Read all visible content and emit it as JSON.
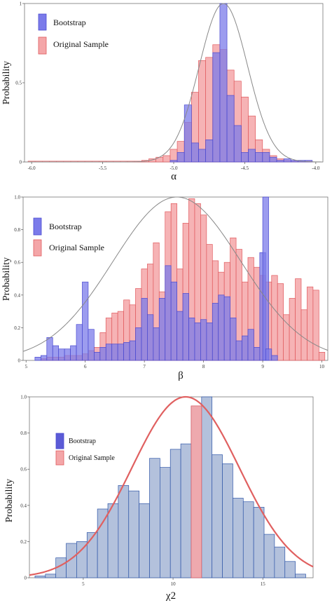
{
  "chart_data": [
    {
      "type": "bar",
      "xlabel": "α",
      "ylabel": "Probability",
      "xlim": [
        -6.05,
        -3.95
      ],
      "ylim": [
        0,
        1.0
      ],
      "xticks": [
        -6.0,
        -5.5,
        -5.0,
        -4.5,
        -4.0
      ],
      "xtick_labels": [
        "-6.0",
        "-5.5",
        "-5.0",
        "-4.5",
        "-4.0"
      ],
      "yticks": [
        0,
        0.5,
        1
      ],
      "ytick_labels": [
        "0",
        "0.5",
        "1"
      ],
      "legend_position": "top-left",
      "grid": false,
      "bin_width": 0.05,
      "series": [
        {
          "name": "Original Sample",
          "color": "#f4a6a8",
          "edge": "#e05a5e",
          "bins": [
            {
              "x": -6.0,
              "y": 0.005
            },
            {
              "x": -5.95,
              "y": 0.005
            },
            {
              "x": -5.9,
              "y": 0.005
            },
            {
              "x": -5.85,
              "y": 0.005
            },
            {
              "x": -5.8,
              "y": 0.005
            },
            {
              "x": -5.75,
              "y": 0.005
            },
            {
              "x": -5.7,
              "y": 0.005
            },
            {
              "x": -5.65,
              "y": 0.005
            },
            {
              "x": -5.6,
              "y": 0.005
            },
            {
              "x": -5.55,
              "y": 0.005
            },
            {
              "x": -5.5,
              "y": 0.005
            },
            {
              "x": -5.45,
              "y": 0.005
            },
            {
              "x": -5.4,
              "y": 0.005
            },
            {
              "x": -5.35,
              "y": 0.005
            },
            {
              "x": -5.3,
              "y": 0.005
            },
            {
              "x": -5.25,
              "y": 0.005
            },
            {
              "x": -5.2,
              "y": 0.01
            },
            {
              "x": -5.15,
              "y": 0.02
            },
            {
              "x": -5.1,
              "y": 0.03
            },
            {
              "x": -5.05,
              "y": 0.04
            },
            {
              "x": -5.0,
              "y": 0.08
            },
            {
              "x": -4.95,
              "y": 0.13
            },
            {
              "x": -4.9,
              "y": 0.25
            },
            {
              "x": -4.85,
              "y": 0.44
            },
            {
              "x": -4.8,
              "y": 0.64
            },
            {
              "x": -4.75,
              "y": 0.66
            },
            {
              "x": -4.7,
              "y": 0.74
            },
            {
              "x": -4.65,
              "y": 0.71
            },
            {
              "x": -4.6,
              "y": 0.58
            },
            {
              "x": -4.55,
              "y": 0.51
            },
            {
              "x": -4.5,
              "y": 0.41
            },
            {
              "x": -4.45,
              "y": 0.29
            },
            {
              "x": -4.4,
              "y": 0.14
            },
            {
              "x": -4.35,
              "y": 0.08
            },
            {
              "x": -4.3,
              "y": 0.04
            },
            {
              "x": -4.25,
              "y": 0.02
            },
            {
              "x": -4.2,
              "y": 0.01
            },
            {
              "x": -4.15,
              "y": 0.005
            },
            {
              "x": -4.1,
              "y": 0.005
            },
            {
              "x": -4.05,
              "y": 0.005
            }
          ]
        },
        {
          "name": "Bootstrap",
          "color": "#7b7bea",
          "edge": "#4a4ad0",
          "bins": [
            {
              "x": -5.0,
              "y": 0.01
            },
            {
              "x": -4.95,
              "y": 0.06
            },
            {
              "x": -4.9,
              "y": 0.36
            },
            {
              "x": -4.85,
              "y": 0.12
            },
            {
              "x": -4.8,
              "y": 0.08
            },
            {
              "x": -4.75,
              "y": 0.14
            },
            {
              "x": -4.7,
              "y": 0.69
            },
            {
              "x": -4.65,
              "y": 1.0
            },
            {
              "x": -4.6,
              "y": 0.42
            },
            {
              "x": -4.55,
              "y": 0.23
            },
            {
              "x": -4.5,
              "y": 0.06
            },
            {
              "x": -4.45,
              "y": 0.08
            },
            {
              "x": -4.4,
              "y": 0.06
            },
            {
              "x": -4.35,
              "y": 0.06
            },
            {
              "x": -4.3,
              "y": 0.03
            },
            {
              "x": -4.25,
              "y": 0.01
            },
            {
              "x": -4.2,
              "y": 0.02
            },
            {
              "x": -4.15,
              "y": 0.01
            },
            {
              "x": -4.1,
              "y": 0.01
            },
            {
              "x": -4.05,
              "y": 0.01
            }
          ]
        }
      ],
      "fit_curve": {
        "type": "normal",
        "mean": -4.65,
        "sd": 0.17,
        "peak": 1.0,
        "color": "#888888"
      }
    },
    {
      "type": "bar",
      "xlabel": "β",
      "ylabel": "Probability",
      "xlim": [
        4.95,
        10.1
      ],
      "ylim": [
        0,
        1.0
      ],
      "xticks": [
        5,
        6,
        7,
        8,
        9,
        10
      ],
      "xtick_labels": [
        "5",
        "6",
        "7",
        "8",
        "9",
        "10"
      ],
      "yticks": [
        0,
        0.2,
        0.4,
        0.6,
        0.8,
        1.0
      ],
      "ytick_labels": [
        "0",
        "0.2",
        "0.4",
        "0.6",
        "0.8",
        "1.0"
      ],
      "legend_position": "top-left",
      "grid": false,
      "bin_width": 0.1,
      "series": [
        {
          "name": "Original Sample",
          "color": "#f4a6a8",
          "edge": "#e05a5e",
          "bins": [
            {
              "x": 5.3,
              "y": 0.01
            },
            {
              "x": 5.4,
              "y": 0.02
            },
            {
              "x": 5.5,
              "y": 0.02
            },
            {
              "x": 5.6,
              "y": 0.02
            },
            {
              "x": 5.7,
              "y": 0.03
            },
            {
              "x": 5.8,
              "y": 0.03
            },
            {
              "x": 5.9,
              "y": 0.03
            },
            {
              "x": 6.0,
              "y": 0.04
            },
            {
              "x": 6.1,
              "y": 0.06
            },
            {
              "x": 6.2,
              "y": 0.08
            },
            {
              "x": 6.3,
              "y": 0.17
            },
            {
              "x": 6.4,
              "y": 0.26
            },
            {
              "x": 6.5,
              "y": 0.29
            },
            {
              "x": 6.6,
              "y": 0.3
            },
            {
              "x": 6.7,
              "y": 0.37
            },
            {
              "x": 6.8,
              "y": 0.34
            },
            {
              "x": 6.9,
              "y": 0.44
            },
            {
              "x": 7.0,
              "y": 0.56
            },
            {
              "x": 7.1,
              "y": 0.59
            },
            {
              "x": 7.2,
              "y": 0.72
            },
            {
              "x": 7.3,
              "y": 0.42
            },
            {
              "x": 7.4,
              "y": 0.91
            },
            {
              "x": 7.5,
              "y": 0.96
            },
            {
              "x": 7.6,
              "y": 0.56
            },
            {
              "x": 7.7,
              "y": 0.84
            },
            {
              "x": 7.8,
              "y": 0.99
            },
            {
              "x": 7.9,
              "y": 0.96
            },
            {
              "x": 8.0,
              "y": 0.89
            },
            {
              "x": 8.1,
              "y": 0.71
            },
            {
              "x": 8.2,
              "y": 0.61
            },
            {
              "x": 8.3,
              "y": 0.54
            },
            {
              "x": 8.4,
              "y": 0.6
            },
            {
              "x": 8.5,
              "y": 0.75
            },
            {
              "x": 8.6,
              "y": 0.68
            },
            {
              "x": 8.7,
              "y": 0.48
            },
            {
              "x": 8.8,
              "y": 0.63
            },
            {
              "x": 8.9,
              "y": 0.57
            },
            {
              "x": 9.0,
              "y": 0.52
            },
            {
              "x": 9.1,
              "y": 0.48
            },
            {
              "x": 9.2,
              "y": 0.52
            },
            {
              "x": 9.3,
              "y": 0.47
            },
            {
              "x": 9.4,
              "y": 0.28
            },
            {
              "x": 9.5,
              "y": 0.38
            },
            {
              "x": 9.6,
              "y": 0.5
            },
            {
              "x": 9.7,
              "y": 0.31
            },
            {
              "x": 9.8,
              "y": 0.45
            },
            {
              "x": 9.9,
              "y": 0.43
            },
            {
              "x": 10.0,
              "y": 0.05
            }
          ]
        },
        {
          "name": "Bootstrap",
          "color": "#7b7bea",
          "edge": "#4a4ad0",
          "bins": [
            {
              "x": 5.2,
              "y": 0.02
            },
            {
              "x": 5.3,
              "y": 0.03
            },
            {
              "x": 5.4,
              "y": 0.14
            },
            {
              "x": 5.5,
              "y": 0.09
            },
            {
              "x": 5.6,
              "y": 0.07
            },
            {
              "x": 5.7,
              "y": 0.07
            },
            {
              "x": 5.8,
              "y": 0.09
            },
            {
              "x": 5.9,
              "y": 0.22
            },
            {
              "x": 6.0,
              "y": 0.48
            },
            {
              "x": 6.1,
              "y": 0.19
            },
            {
              "x": 6.2,
              "y": 0.05
            },
            {
              "x": 6.3,
              "y": 0.08
            },
            {
              "x": 6.4,
              "y": 0.1
            },
            {
              "x": 6.5,
              "y": 0.1
            },
            {
              "x": 6.6,
              "y": 0.1
            },
            {
              "x": 6.7,
              "y": 0.11
            },
            {
              "x": 6.8,
              "y": 0.12
            },
            {
              "x": 6.9,
              "y": 0.2
            },
            {
              "x": 7.0,
              "y": 0.38
            },
            {
              "x": 7.1,
              "y": 0.28
            },
            {
              "x": 7.2,
              "y": 0.2
            },
            {
              "x": 7.3,
              "y": 0.38
            },
            {
              "x": 7.4,
              "y": 0.58
            },
            {
              "x": 7.5,
              "y": 0.48
            },
            {
              "x": 7.6,
              "y": 0.3
            },
            {
              "x": 7.7,
              "y": 0.41
            },
            {
              "x": 7.8,
              "y": 0.26
            },
            {
              "x": 7.9,
              "y": 0.23
            },
            {
              "x": 8.0,
              "y": 0.25
            },
            {
              "x": 8.1,
              "y": 0.23
            },
            {
              "x": 8.2,
              "y": 0.35
            },
            {
              "x": 8.3,
              "y": 0.4
            },
            {
              "x": 8.4,
              "y": 0.39
            },
            {
              "x": 8.5,
              "y": 0.26
            },
            {
              "x": 8.6,
              "y": 0.12
            },
            {
              "x": 8.7,
              "y": 0.15
            },
            {
              "x": 8.8,
              "y": 0.19
            },
            {
              "x": 8.9,
              "y": 0.08
            },
            {
              "x": 9.0,
              "y": 0.66
            },
            {
              "x": 9.05,
              "y": 1.0
            },
            {
              "x": 9.1,
              "y": 0.07
            },
            {
              "x": 9.2,
              "y": 0.03
            }
          ]
        }
      ],
      "fit_curve": {
        "type": "normal",
        "mean": 7.55,
        "sd": 1.08,
        "peak": 1.0,
        "color": "#888888"
      }
    },
    {
      "type": "bar",
      "xlabel": "χ2",
      "ylabel": "Probability",
      "xlim": [
        2.0,
        17.8
      ],
      "ylim": [
        0,
        1.0
      ],
      "xticks": [
        5,
        10,
        15
      ],
      "xtick_labels": [
        "5",
        "10",
        "15"
      ],
      "yticks": [
        0,
        0.2,
        0.4,
        0.6,
        0.8,
        1.0
      ],
      "ytick_labels": [
        "0",
        "0.2",
        "0.4",
        "0.6",
        "0.8",
        "1.0"
      ],
      "legend_position": "top-left",
      "grid": false,
      "bin_width": 0.58,
      "series": [
        {
          "name": "Bootstrap",
          "color": "#b3c1dc",
          "edge": "#2f56a8",
          "bins": [
            {
              "x": 2.6,
              "y": 0.01
            },
            {
              "x": 3.18,
              "y": 0.02
            },
            {
              "x": 3.76,
              "y": 0.11
            },
            {
              "x": 4.34,
              "y": 0.19
            },
            {
              "x": 4.92,
              "y": 0.2
            },
            {
              "x": 5.5,
              "y": 0.25
            },
            {
              "x": 6.08,
              "y": 0.38
            },
            {
              "x": 6.66,
              "y": 0.41
            },
            {
              "x": 7.24,
              "y": 0.51
            },
            {
              "x": 7.82,
              "y": 0.48
            },
            {
              "x": 8.4,
              "y": 0.41
            },
            {
              "x": 8.98,
              "y": 0.66
            },
            {
              "x": 9.56,
              "y": 0.61
            },
            {
              "x": 10.14,
              "y": 0.71
            },
            {
              "x": 10.72,
              "y": 0.74
            },
            {
              "x": 11.3,
              "y": 0.95
            },
            {
              "x": 11.88,
              "y": 1.0
            },
            {
              "x": 12.46,
              "y": 0.68
            },
            {
              "x": 13.04,
              "y": 0.63
            },
            {
              "x": 13.62,
              "y": 0.44
            },
            {
              "x": 14.2,
              "y": 0.42
            },
            {
              "x": 14.78,
              "y": 0.39
            },
            {
              "x": 15.36,
              "y": 0.24
            },
            {
              "x": 15.94,
              "y": 0.17
            },
            {
              "x": 16.52,
              "y": 0.09
            },
            {
              "x": 17.1,
              "y": 0.02
            }
          ]
        },
        {
          "name": "Original Sample",
          "color": "#f4a6a8",
          "edge": "#e05a5e",
          "bins": [
            {
              "x": 11.3,
              "y": 0.95
            }
          ]
        }
      ],
      "fit_curve": {
        "type": "normal",
        "mean": 10.7,
        "sd": 3.0,
        "peak": 1.0,
        "color": "#e06060"
      }
    }
  ]
}
